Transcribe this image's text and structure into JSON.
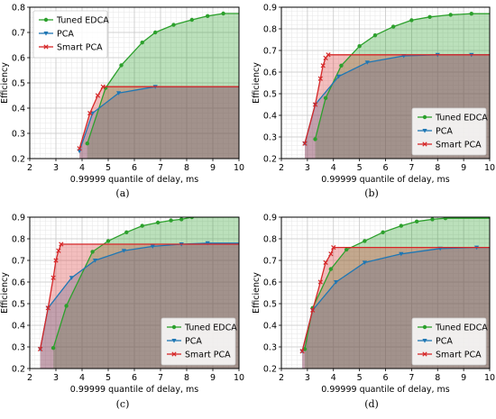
{
  "figure": {
    "panels": [
      {
        "caption": "(a)",
        "legend_position": "top-left",
        "chart_data": {
          "type": "area",
          "xlabel": "0.99999 quantile of delay, ms",
          "ylabel": "Efficiency",
          "xlim": [
            2,
            10
          ],
          "ylim": [
            0.2,
            0.8
          ],
          "xticks": [
            2,
            3,
            4,
            5,
            6,
            7,
            8,
            9,
            10
          ],
          "yticks": [
            0.2,
            0.3,
            0.4,
            0.5,
            0.6,
            0.7,
            0.8
          ],
          "grid": true,
          "series": [
            {
              "name": "Tuned EDCA",
              "color": "#2ca02c",
              "marker": "circle",
              "x": [
                4.2,
                4.9,
                5.5,
                6.3,
                6.8,
                7.5,
                8.2,
                8.8,
                9.4
              ],
              "y": [
                0.26,
                0.48,
                0.57,
                0.66,
                0.7,
                0.73,
                0.75,
                0.765,
                0.775
              ]
            },
            {
              "name": "PCA",
              "color": "#1f77b4",
              "marker": "triangle",
              "x": [
                3.9,
                4.4,
                5.4,
                6.8
              ],
              "y": [
                0.23,
                0.38,
                0.46,
                0.485
              ]
            },
            {
              "name": "Smart PCA",
              "color": "#d62728",
              "marker": "x",
              "x": [
                3.9,
                4.3,
                4.6,
                4.8
              ],
              "y": [
                0.24,
                0.38,
                0.45,
                0.485
              ]
            }
          ]
        }
      },
      {
        "caption": "(b)",
        "legend_position": "bottom-right",
        "chart_data": {
          "type": "area",
          "xlabel": "0.99999 quantile of delay, ms",
          "ylabel": "Efficiency",
          "xlim": [
            2,
            10
          ],
          "ylim": [
            0.2,
            0.9
          ],
          "xticks": [
            2,
            3,
            4,
            5,
            6,
            7,
            8,
            9,
            10
          ],
          "yticks": [
            0.2,
            0.3,
            0.4,
            0.5,
            0.6,
            0.7,
            0.8,
            0.9
          ],
          "grid": true,
          "series": [
            {
              "name": "Tuned EDCA",
              "color": "#2ca02c",
              "marker": "circle",
              "x": [
                3.3,
                3.7,
                4.3,
                5.0,
                5.6,
                6.3,
                7.0,
                7.7,
                8.5,
                9.3
              ],
              "y": [
                0.29,
                0.48,
                0.63,
                0.72,
                0.77,
                0.81,
                0.84,
                0.855,
                0.865,
                0.87
              ]
            },
            {
              "name": "PCA",
              "color": "#1f77b4",
              "marker": "triangle",
              "x": [
                2.9,
                3.3,
                4.2,
                5.3,
                6.7,
                8.0,
                9.3
              ],
              "y": [
                0.27,
                0.45,
                0.58,
                0.645,
                0.675,
                0.68,
                0.68
              ]
            },
            {
              "name": "Smart PCA",
              "color": "#d62728",
              "marker": "x",
              "x": [
                2.9,
                3.3,
                3.5,
                3.6,
                3.7,
                3.8
              ],
              "y": [
                0.27,
                0.45,
                0.57,
                0.63,
                0.665,
                0.68
              ]
            }
          ]
        }
      },
      {
        "caption": "(c)",
        "legend_position": "bottom-right",
        "chart_data": {
          "type": "area",
          "xlabel": "0.99999 quantile of delay, ms",
          "ylabel": "Efficiency",
          "xlim": [
            2,
            10
          ],
          "ylim": [
            0.2,
            0.9
          ],
          "xticks": [
            2,
            3,
            4,
            5,
            6,
            7,
            8,
            9,
            10
          ],
          "yticks": [
            0.2,
            0.3,
            0.4,
            0.5,
            0.6,
            0.7,
            0.8,
            0.9
          ],
          "grid": true,
          "series": [
            {
              "name": "Tuned EDCA",
              "color": "#2ca02c",
              "marker": "circle",
              "x": [
                2.9,
                3.4,
                4.4,
                5.0,
                5.7,
                6.3,
                6.9,
                7.4,
                7.8,
                8.2
              ],
              "y": [
                0.295,
                0.49,
                0.74,
                0.79,
                0.83,
                0.86,
                0.875,
                0.885,
                0.89,
                0.9
              ]
            },
            {
              "name": "PCA",
              "color": "#1f77b4",
              "marker": "triangle",
              "x": [
                2.4,
                2.7,
                3.6,
                4.5,
                5.6,
                6.7,
                7.8,
                8.8
              ],
              "y": [
                0.29,
                0.48,
                0.62,
                0.7,
                0.745,
                0.765,
                0.775,
                0.78
              ]
            },
            {
              "name": "Smart PCA",
              "color": "#d62728",
              "marker": "x",
              "x": [
                2.4,
                2.7,
                2.9,
                3.0,
                3.1,
                3.2
              ],
              "y": [
                0.29,
                0.48,
                0.62,
                0.7,
                0.745,
                0.775
              ]
            }
          ]
        }
      },
      {
        "caption": "(d)",
        "legend_position": "bottom-right",
        "chart_data": {
          "type": "area",
          "xlabel": "0.99999 quantile of delay, ms",
          "ylabel": "Efficiency",
          "xlim": [
            2,
            10
          ],
          "ylim": [
            0.2,
            0.9
          ],
          "xticks": [
            2,
            3,
            4,
            5,
            6,
            7,
            8,
            9,
            10
          ],
          "yticks": [
            0.2,
            0.3,
            0.4,
            0.5,
            0.6,
            0.7,
            0.8,
            0.9
          ],
          "grid": true,
          "series": [
            {
              "name": "Tuned EDCA",
              "color": "#2ca02c",
              "marker": "circle",
              "x": [
                2.9,
                3.2,
                3.9,
                4.5,
                5.2,
                5.9,
                6.6,
                7.2,
                7.8,
                8.3
              ],
              "y": [
                0.29,
                0.48,
                0.66,
                0.75,
                0.79,
                0.83,
                0.86,
                0.88,
                0.89,
                0.895
              ]
            },
            {
              "name": "PCA",
              "color": "#1f77b4",
              "marker": "triangle",
              "x": [
                2.8,
                3.2,
                4.1,
                5.2,
                6.6,
                8.1,
                9.5
              ],
              "y": [
                0.28,
                0.47,
                0.6,
                0.69,
                0.73,
                0.755,
                0.76
              ]
            },
            {
              "name": "Smart PCA",
              "color": "#d62728",
              "marker": "x",
              "x": [
                2.8,
                3.2,
                3.5,
                3.7,
                3.9,
                4.0
              ],
              "y": [
                0.28,
                0.47,
                0.6,
                0.69,
                0.73,
                0.76
              ]
            }
          ]
        }
      }
    ]
  }
}
